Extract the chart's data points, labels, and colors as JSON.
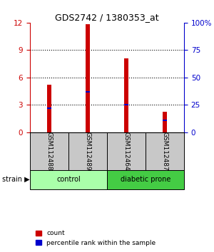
{
  "title": "GDS2742 / 1380353_at",
  "samples": [
    "GSM112488",
    "GSM112489",
    "GSM112464",
    "GSM112487"
  ],
  "count_values": [
    5.2,
    11.8,
    8.1,
    2.2
  ],
  "percentile_values": [
    2.6,
    4.4,
    3.0,
    1.3
  ],
  "ylim_left": [
    0,
    12
  ],
  "ylim_right": [
    0,
    100
  ],
  "yticks_left": [
    0,
    3,
    6,
    9,
    12
  ],
  "yticks_right": [
    0,
    25,
    50,
    75,
    100
  ],
  "bar_width": 0.12,
  "red_color": "#CC0000",
  "blue_color": "#0000CC",
  "left_tick_color": "#CC0000",
  "right_tick_color": "#0000CC",
  "groups": [
    {
      "label": "control",
      "indices": [
        0,
        1
      ],
      "color": "#AAFFAA"
    },
    {
      "label": "diabetic prone",
      "indices": [
        2,
        3
      ],
      "color": "#44CC44"
    }
  ],
  "legend_count": "count",
  "legend_pct": "percentile rank within the sample",
  "sample_box_color": "#C8C8C8",
  "title_fontsize": 9
}
